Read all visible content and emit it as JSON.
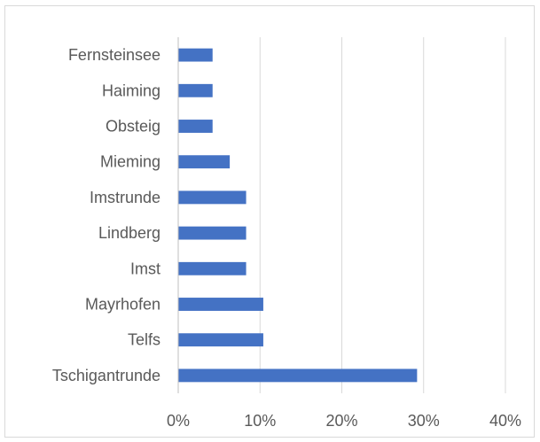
{
  "chart_data": {
    "type": "bar",
    "orientation": "horizontal",
    "categories": [
      "Fernsteinsee",
      "Haiming",
      "Obsteig",
      "Mieming",
      "Imstrunde",
      "Lindberg",
      "Imst",
      "Mayrhofen",
      "Telfs",
      "Tschigantrunde"
    ],
    "values": [
      4.2,
      4.2,
      4.2,
      6.3,
      8.3,
      8.3,
      8.3,
      10.4,
      10.4,
      29.2
    ],
    "xlim": [
      0,
      40
    ],
    "x_ticks": [
      0,
      10,
      20,
      30,
      40
    ],
    "x_tick_labels": [
      "0%",
      "10%",
      "20%",
      "30%",
      "40%"
    ],
    "title": "",
    "xlabel": "",
    "ylabel": "",
    "grid": "vertical",
    "legend": "none",
    "colors": {
      "bar": "#4472c4",
      "grid": "#d9d9d9",
      "axis": "#bfbfbf",
      "text": "#595959"
    }
  }
}
